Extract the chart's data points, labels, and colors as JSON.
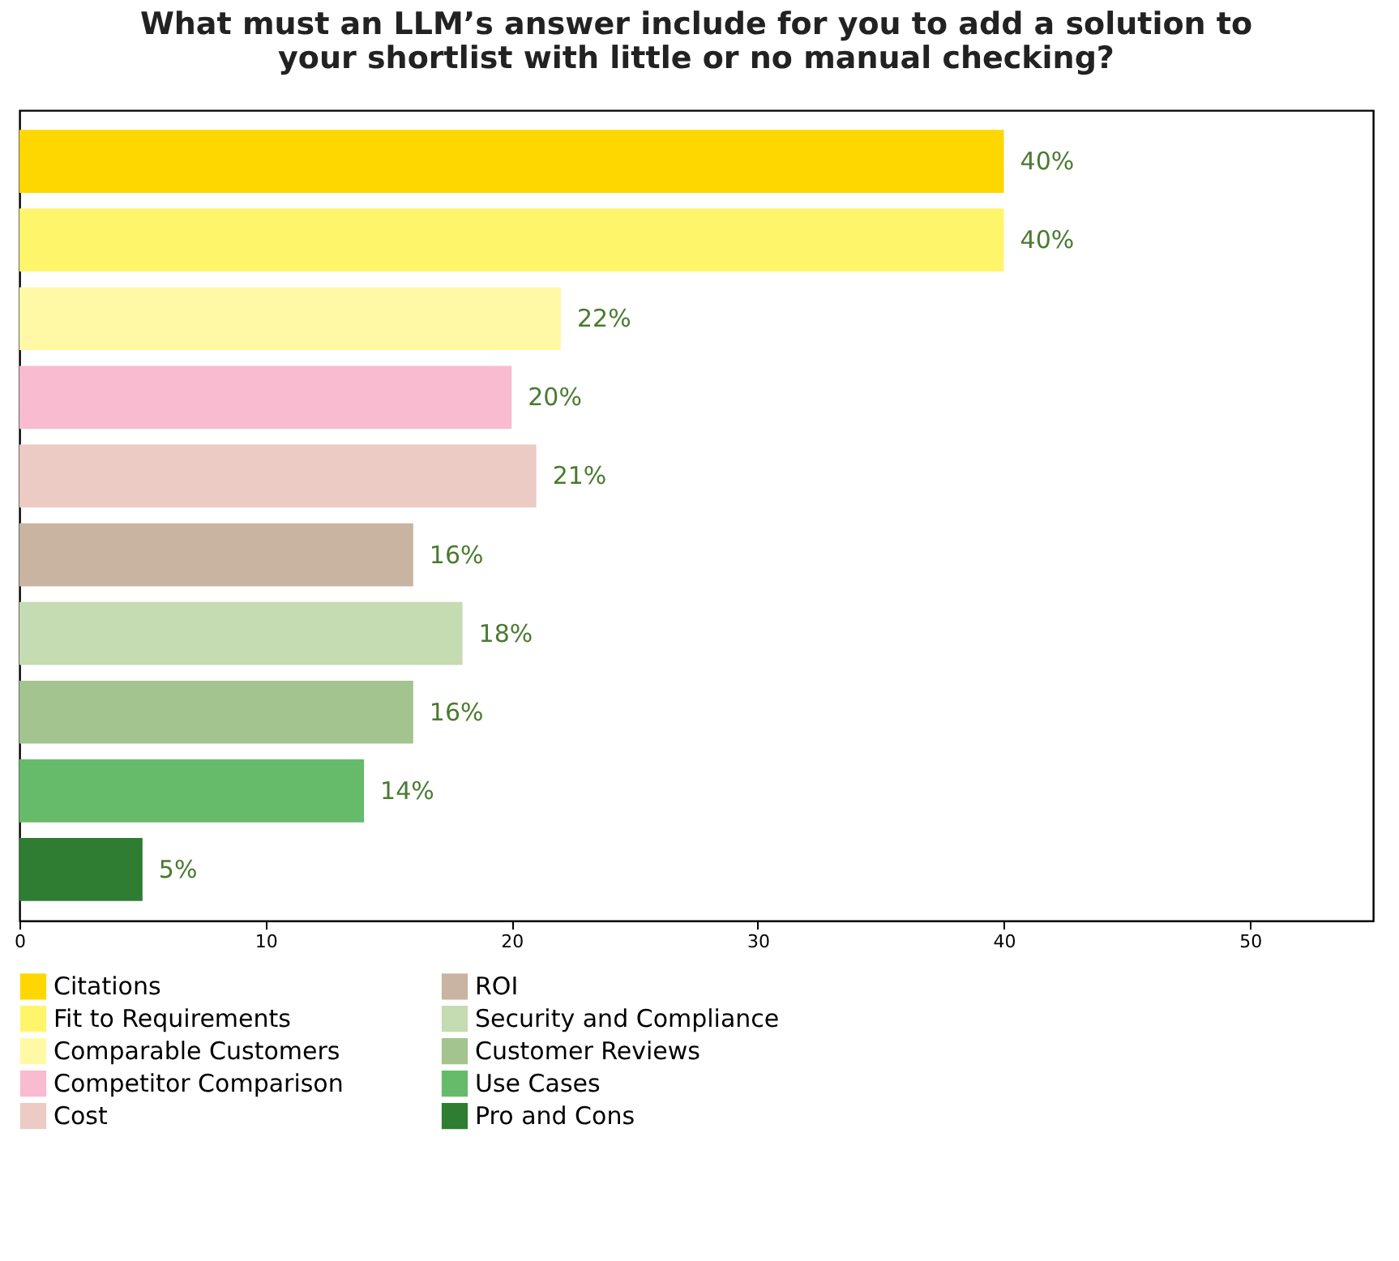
{
  "chart_data": {
    "type": "bar",
    "orientation": "horizontal",
    "stacked": true,
    "title": "What must an LLM’s answer include for you to add a solution to your shortlist with little or no manual checking?",
    "categories": [
      null,
      null,
      null,
      null,
      null,
      null,
      null,
      null,
      null,
      null
    ],
    "series": [
      {
        "name": "Citations",
        "color": "#ffd700",
        "values": [
          40,
          null,
          null,
          null,
          null,
          null,
          null,
          null,
          null,
          null
        ],
        "value_labels": [
          "40%",
          null,
          null,
          null,
          null,
          null,
          null,
          null,
          null,
          null
        ]
      },
      {
        "name": "Fit to Requirements",
        "color": "#fff56b",
        "values": [
          null,
          40,
          null,
          null,
          null,
          null,
          null,
          null,
          null,
          null
        ],
        "value_labels": [
          null,
          "40%",
          null,
          null,
          null,
          null,
          null,
          null,
          null,
          null
        ]
      },
      {
        "name": "Comparable Customers",
        "color": "#fff9a6",
        "values": [
          null,
          null,
          22,
          null,
          null,
          null,
          null,
          null,
          null,
          null
        ],
        "value_labels": [
          null,
          null,
          "22%",
          null,
          null,
          null,
          null,
          null,
          null,
          null
        ]
      },
      {
        "name": "Competitor Comparison",
        "color": "#f8bbd0",
        "values": [
          null,
          null,
          null,
          20,
          null,
          null,
          null,
          null,
          null,
          null
        ],
        "value_labels": [
          null,
          null,
          null,
          "20%",
          null,
          null,
          null,
          null,
          null,
          null
        ]
      },
      {
        "name": "Cost",
        "color": "#ebcbc3",
        "values": [
          null,
          null,
          null,
          null,
          21,
          null,
          null,
          null,
          null,
          null
        ],
        "value_labels": [
          null,
          null,
          null,
          null,
          "21%",
          null,
          null,
          null,
          null,
          null
        ]
      },
      {
        "name": "ROI",
        "color": "#c8b4a0",
        "values": [
          null,
          null,
          null,
          null,
          null,
          16,
          null,
          null,
          null,
          null
        ],
        "value_labels": [
          null,
          null,
          null,
          null,
          null,
          "16%",
          null,
          null,
          null,
          null
        ]
      },
      {
        "name": "Security and Compliance",
        "color": "#c5dbb2",
        "values": [
          null,
          null,
          null,
          null,
          null,
          null,
          18,
          null,
          null,
          null
        ],
        "value_labels": [
          null,
          null,
          null,
          null,
          null,
          null,
          "18%",
          null,
          null,
          null
        ]
      },
      {
        "name": "Customer Reviews",
        "color": "#a3c48e",
        "values": [
          null,
          null,
          null,
          null,
          null,
          null,
          null,
          16,
          null,
          null
        ],
        "value_labels": [
          null,
          null,
          null,
          null,
          null,
          null,
          null,
          "16%",
          null,
          null
        ]
      },
      {
        "name": "Use Cases",
        "color": "#66bb6a",
        "values": [
          null,
          null,
          null,
          null,
          null,
          null,
          null,
          null,
          14,
          null
        ],
        "value_labels": [
          null,
          null,
          null,
          null,
          null,
          null,
          null,
          null,
          "14%",
          null
        ]
      },
      {
        "name": "Pro and Cons",
        "color": "#2e7d32",
        "values": [
          null,
          null,
          null,
          null,
          null,
          null,
          null,
          null,
          null,
          5
        ],
        "value_labels": [
          null,
          null,
          null,
          null,
          null,
          null,
          null,
          null,
          null,
          "5%"
        ]
      }
    ],
    "xlim": [
      0,
      55
    ],
    "xticks": [
      0,
      10,
      20,
      30,
      40,
      50
    ],
    "grid": false,
    "legend": "bottom",
    "tick_labels": "x"
  }
}
